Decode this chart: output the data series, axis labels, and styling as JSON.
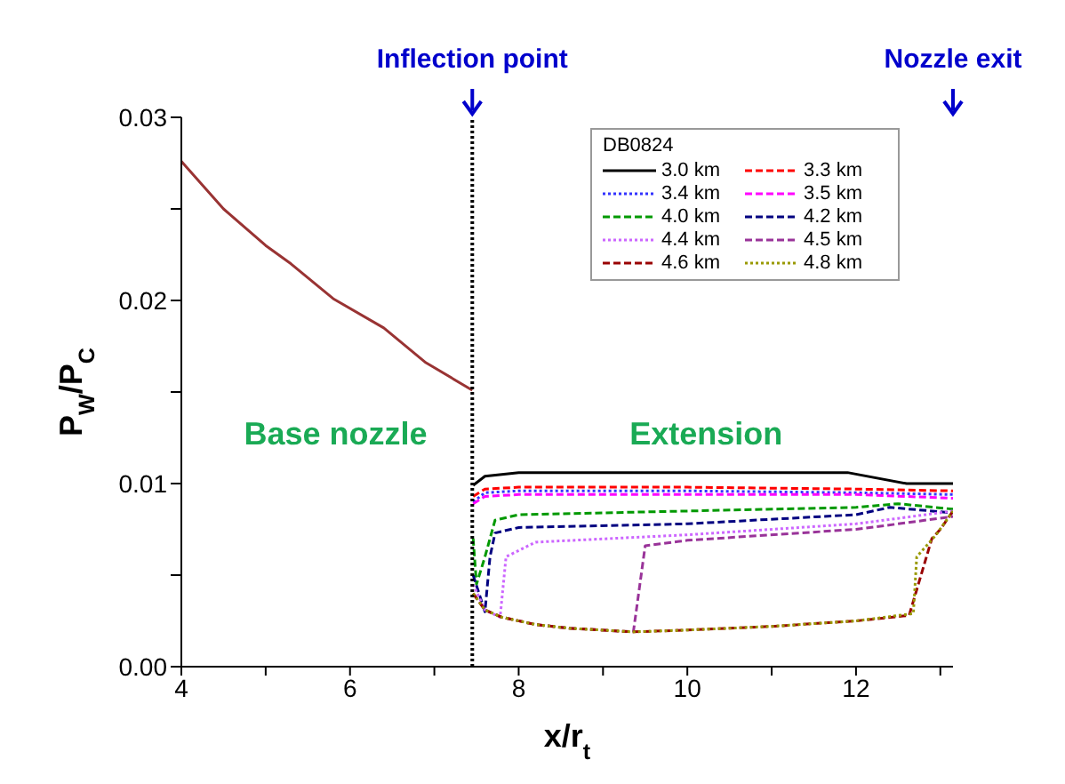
{
  "chart_data": {
    "type": "line",
    "xlabel": "x/r$_{t}$",
    "ylabel": "P$_{W}$/P$_{C}$",
    "legend_title": "DB0824",
    "legend": "top right",
    "xlim": [
      4,
      13.15
    ],
    "xticks": [
      4,
      {
        "value": 5,
        "label": null
      },
      6,
      {
        "value": 7,
        "label": null
      },
      8,
      {
        "value": 9,
        "label": null
      },
      10,
      {
        "value": 11,
        "label": null
      },
      12,
      {
        "value": 13,
        "label": null
      }
    ],
    "ylim": [
      0,
      0.03
    ],
    "yticks": [
      {
        "value": 0,
        "label": "0.00"
      },
      {
        "value": 0.005,
        "label": null
      },
      {
        "value": 0.01,
        "label": "0.01"
      },
      {
        "value": 0.015,
        "label": null
      },
      {
        "value": 0.02,
        "label": "0.02"
      },
      {
        "value": 0.025,
        "label": null
      },
      {
        "value": 0.03,
        "label": "0.03"
      }
    ],
    "ref_lines": [
      {
        "axis": "x",
        "value": 7.45,
        "label": "Inflection point",
        "line_style": "dotted",
        "color": "#000000"
      }
    ],
    "annotations": [
      "Nozzle exit",
      "Base nozzle",
      "Extension"
    ],
    "series": [
      {
        "color": "#993333",
        "line_style": "solid",
        "x": [
          4,
          4.5,
          5,
          5.3,
          5.8,
          6.4,
          6.9,
          7.45
        ],
        "values": [
          0.0276,
          0.025,
          0.023,
          0.022,
          0.0201,
          0.0185,
          0.0166,
          0.0151
        ]
      },
      {
        "name": "3.0 km",
        "color": "#000000",
        "line_style": "solid",
        "x": [
          7.46,
          7.6,
          8,
          9,
          10,
          11,
          11.9,
          12.6,
          13.15
        ],
        "values": [
          0.0099,
          0.0104,
          0.0106,
          0.0106,
          0.0106,
          0.0106,
          0.0106,
          0.01,
          0.01
        ]
      },
      {
        "name": "3.3 km",
        "color": "#ff0000",
        "line_style": "dashed",
        "x": [
          7.46,
          7.6,
          8,
          10,
          12,
          13.15
        ],
        "values": [
          0.0093,
          0.0097,
          0.0098,
          0.0098,
          0.0097,
          0.0096
        ]
      },
      {
        "name": "3.4 km",
        "color": "#3333ff",
        "line_style": "dotted",
        "x": [
          7.46,
          7.6,
          8,
          10,
          12,
          13.15
        ],
        "values": [
          0.009,
          0.0095,
          0.0096,
          0.0096,
          0.0095,
          0.0094
        ]
      },
      {
        "name": "3.5 km",
        "color": "#ff00ff",
        "line_style": "dashed",
        "x": [
          7.46,
          7.6,
          8,
          10,
          12,
          13.15
        ],
        "values": [
          0.0089,
          0.0093,
          0.0094,
          0.0094,
          0.0094,
          0.0092
        ]
      },
      {
        "name": "4.0 km",
        "color": "#009900",
        "line_style": "dashed",
        "x": [
          7.46,
          7.5,
          7.6,
          7.72,
          8,
          10,
          12,
          12.5,
          13.15
        ],
        "values": [
          0.007,
          0.0045,
          0.006,
          0.008,
          0.0083,
          0.0085,
          0.0087,
          0.0089,
          0.0086
        ]
      },
      {
        "name": "4.2 km",
        "color": "#000080",
        "line_style": "dashed",
        "x": [
          7.46,
          7.6,
          7.66,
          7.72,
          8,
          10,
          12,
          12.4,
          13.15
        ],
        "values": [
          0.005,
          0.003,
          0.006,
          0.0073,
          0.0076,
          0.0078,
          0.0083,
          0.0087,
          0.0084
        ]
      },
      {
        "name": "4.4 km",
        "color": "#cc66ff",
        "line_style": "dotted",
        "x": [
          7.46,
          7.6,
          7.78,
          7.85,
          8.2,
          10,
          12,
          12.5,
          13.15
        ],
        "values": [
          0.0045,
          0.0031,
          0.0027,
          0.006,
          0.0068,
          0.0072,
          0.0078,
          0.0081,
          0.0085
        ]
      },
      {
        "name": "4.5 km",
        "color": "#993399",
        "line_style": "dashed",
        "x": [
          7.46,
          7.6,
          7.8,
          8.2,
          8.6,
          9.36,
          9.5,
          10,
          12,
          12.5,
          13.15
        ],
        "values": [
          0.004,
          0.0031,
          0.0027,
          0.0023,
          0.0021,
          0.0019,
          0.0066,
          0.0069,
          0.0075,
          0.0078,
          0.0082
        ]
      },
      {
        "name": "4.6 km",
        "color": "#990000",
        "line_style": "dashed",
        "x": [
          7.46,
          7.6,
          7.8,
          8.2,
          8.6,
          9.36,
          10,
          11,
          12,
          12.63,
          12.9,
          13.0,
          13.15
        ],
        "values": [
          0.004,
          0.0031,
          0.0027,
          0.0023,
          0.0021,
          0.0019,
          0.002,
          0.0022,
          0.0025,
          0.0028,
          0.007,
          0.0075,
          0.0085
        ]
      },
      {
        "name": "4.8 km",
        "color": "#999900",
        "line_style": "dotted",
        "x": [
          7.46,
          7.6,
          7.8,
          8.2,
          8.6,
          9.36,
          10,
          11,
          12,
          12.68,
          12.72,
          12.95,
          13.15
        ],
        "values": [
          0.004,
          0.0031,
          0.0027,
          0.0023,
          0.0021,
          0.0019,
          0.002,
          0.0022,
          0.0025,
          0.0029,
          0.006,
          0.0072,
          0.0085
        ]
      }
    ]
  }
}
